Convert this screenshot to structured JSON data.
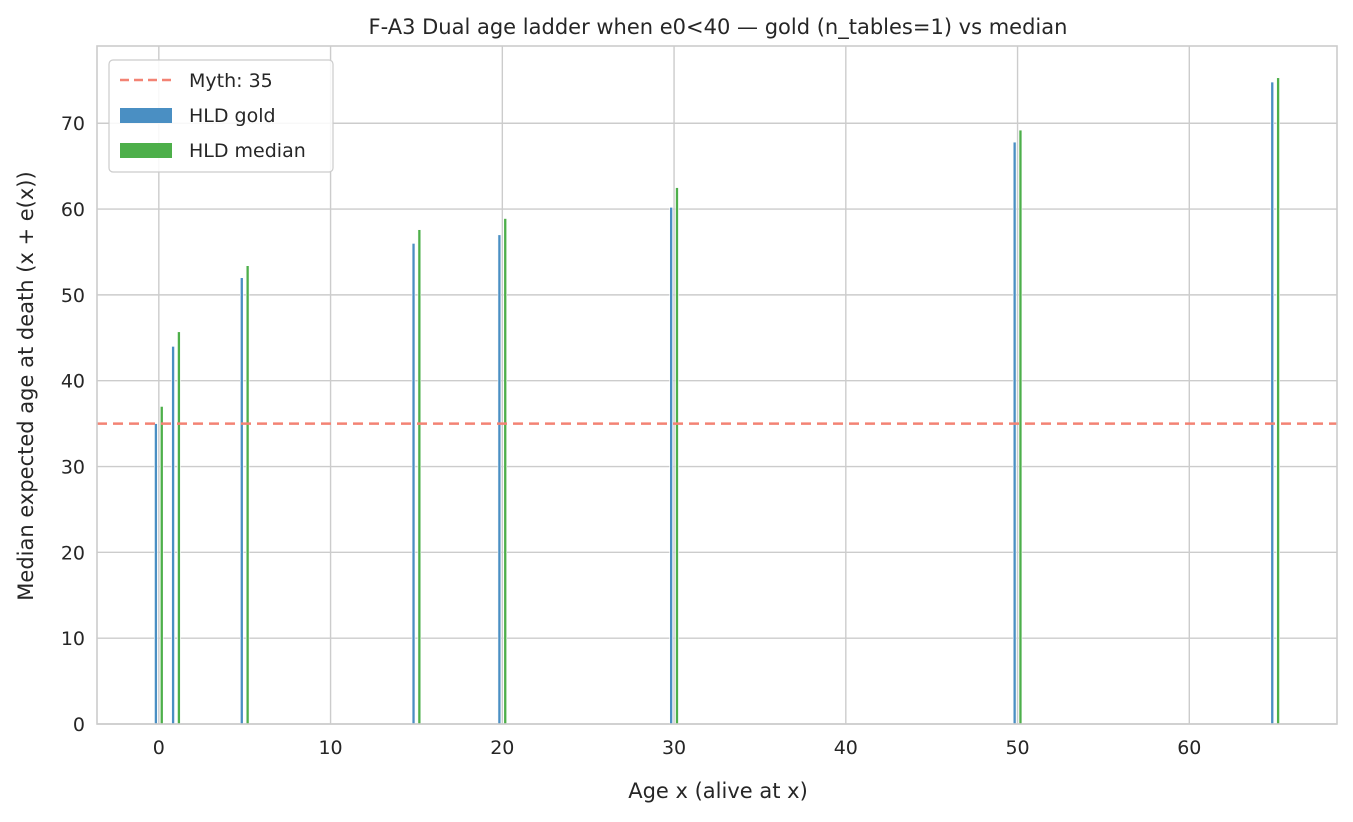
{
  "chart_data": {
    "type": "bar",
    "title": "F-A3 Dual age ladder when e0<40 — gold (n_tables=1) vs median",
    "xlabel": "Age x (alive at x)",
    "ylabel": "Median expected age at death (x + e(x))",
    "x": [
      0,
      1,
      5,
      15,
      20,
      30,
      50,
      65
    ],
    "xlim": [
      -3.6,
      68.6
    ],
    "ylim": [
      0,
      79.0
    ],
    "xticks": [
      0,
      10,
      20,
      30,
      40,
      50,
      60
    ],
    "yticks": [
      0,
      10,
      20,
      30,
      40,
      50,
      60,
      70
    ],
    "grid": true,
    "legend_position": "top-left",
    "series": [
      {
        "name": "HLD gold",
        "color": "#4a8fc3",
        "values": [
          35.0,
          44.0,
          52.0,
          56.0,
          57.0,
          60.2,
          67.8,
          74.8
        ]
      },
      {
        "name": "HLD median",
        "color": "#4daf4a",
        "values": [
          37.0,
          45.7,
          53.4,
          57.6,
          58.9,
          62.5,
          69.2,
          75.3
        ]
      }
    ],
    "reference_line": {
      "name": "Myth: 35",
      "value": 35,
      "color": "#f38374",
      "style": "dashed"
    }
  }
}
